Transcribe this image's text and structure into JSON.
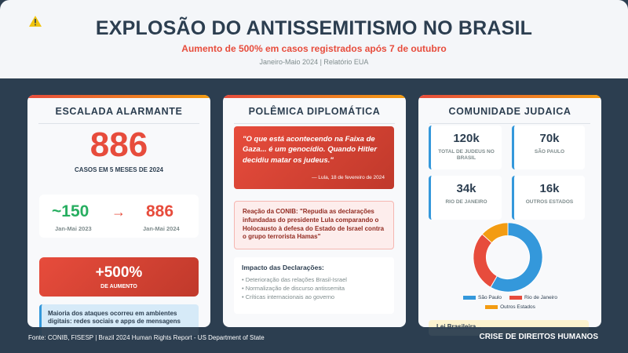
{
  "header": {
    "title": "EXPLOSÃO DO ANTISSEMITISMO NO BRASIL",
    "subtitle": "Aumento de 500% em casos registrados após 7 de outubro",
    "period": "Janeiro-Maio 2024 | Relatório EUA",
    "icon": "warning-icon"
  },
  "escalada": {
    "heading": "ESCALADA ALARMANTE",
    "total": "886",
    "total_caption": "CASOS EM 5 MESES DE 2024",
    "before_value": "~150",
    "before_label": "Jan-Mai 2023",
    "arrow": "→",
    "after_value": "886",
    "after_label": "Jan-Mai 2024",
    "increase_value": "+500%",
    "increase_label": "DE AUMENTO",
    "digital_note": "Maioria dos ataques ocorreu em ambientes digitais: redes sociais e apps de mensagens"
  },
  "polemica": {
    "heading": "POLÊMICA DIPLOMÁTICA",
    "quote": "\"O que está acontecendo na Faixa de Gaza... é um genocídio. Quando Hitler decidiu matar os judeus.\"",
    "quote_source": "— Lula, 18 de fevereiro de 2024",
    "reaction": "Reação da CONIB: \"Repudia as declarações infundadas do presidente Lula comparando o Holocausto à defesa do Estado de Israel contra o grupo terrorista Hamas\"",
    "impact_title": "Impacto das Declarações:",
    "impact_items": [
      "• Deterioração das relações Brasil-Israel",
      "• Normalização de discurso antissemita",
      "• Críticas internacionais ao governo"
    ]
  },
  "comunidade": {
    "heading": "COMUNIDADE JUDAICA",
    "stats": [
      {
        "value": "120k",
        "label": "TOTAL DE JUDEUS NO BRASIL"
      },
      {
        "value": "70k",
        "label": "SÃO PAULO"
      },
      {
        "value": "34k",
        "label": "RIO DE JANEIRO"
      },
      {
        "value": "16k",
        "label": "OUTROS ESTADOS"
      }
    ],
    "law_note": "Lei Brasileira..."
  },
  "chart_data": {
    "type": "pie",
    "categories": [
      "São Paulo",
      "Rio de Janeiro",
      "Outros Estados"
    ],
    "values": [
      70,
      34,
      16
    ],
    "colors": [
      "#3498db",
      "#e74c3c",
      "#f39c12"
    ],
    "legend_position": "bottom"
  },
  "footer": {
    "source": "Fonte: CONIB, FISESP | Brazil 2024 Human Rights Report - US Department of State",
    "tag": "CRISE DE DIREITOS HUMANOS"
  }
}
